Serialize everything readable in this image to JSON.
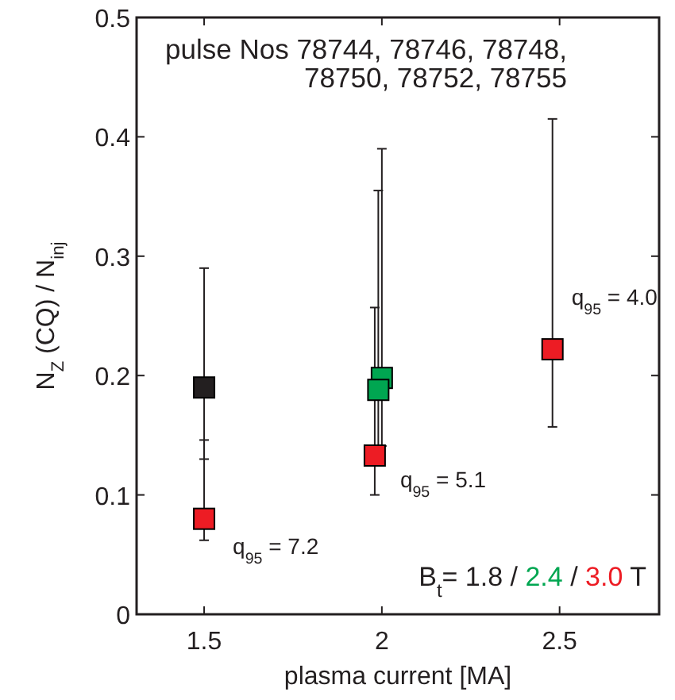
{
  "chart_data": {
    "type": "scatter",
    "xlabel": "plasma current [MA]",
    "ylabel": "N$_{Z}$ (CQ) / N$_{inj}$",
    "xlim": [
      1.31,
      2.78
    ],
    "xticks": [
      1.5,
      2,
      2.5
    ],
    "ylim": [
      0,
      0.5
    ],
    "yticks": [
      0,
      0.1,
      0.2,
      0.3,
      0.4,
      0.5
    ],
    "marker": "square",
    "grid": false,
    "series": [
      {
        "color": "#231f20",
        "x": [
          1.5
        ],
        "values": [
          0.19
        ],
        "errors": [
          [
            0.13,
            0.29
          ]
        ]
      },
      {
        "color": "#00a651",
        "x": [
          2.0,
          1.99
        ],
        "values": [
          0.198,
          0.188
        ],
        "errors": [
          [
            0.141,
            0.39
          ],
          [
            0.141,
            0.355
          ]
        ]
      },
      {
        "color": "#ed1c24",
        "x": [
          1.5,
          1.98,
          2.48
        ],
        "values": [
          0.08,
          0.133,
          0.222
        ],
        "errors": [
          [
            0.062,
            0.146
          ],
          [
            0.1,
            0.257
          ],
          [
            0.157,
            0.415
          ]
        ]
      }
    ],
    "annotations": [
      "pulse Nos 78744, 78746, 78748,\n78750, 78752, 78755",
      {
        "text": "q$_{95}$ = 7.2",
        "x": 1.5,
        "y": 0.08
      },
      {
        "text": "q$_{95}$ = 5.1",
        "x": 1.98,
        "y": 0.133
      },
      {
        "text": "q$_{95}$ = 4.0",
        "x": 2.48,
        "y": 0.222
      },
      "B$_{t}$= 1.8 / 2.4 / 3.0 T"
    ]
  }
}
